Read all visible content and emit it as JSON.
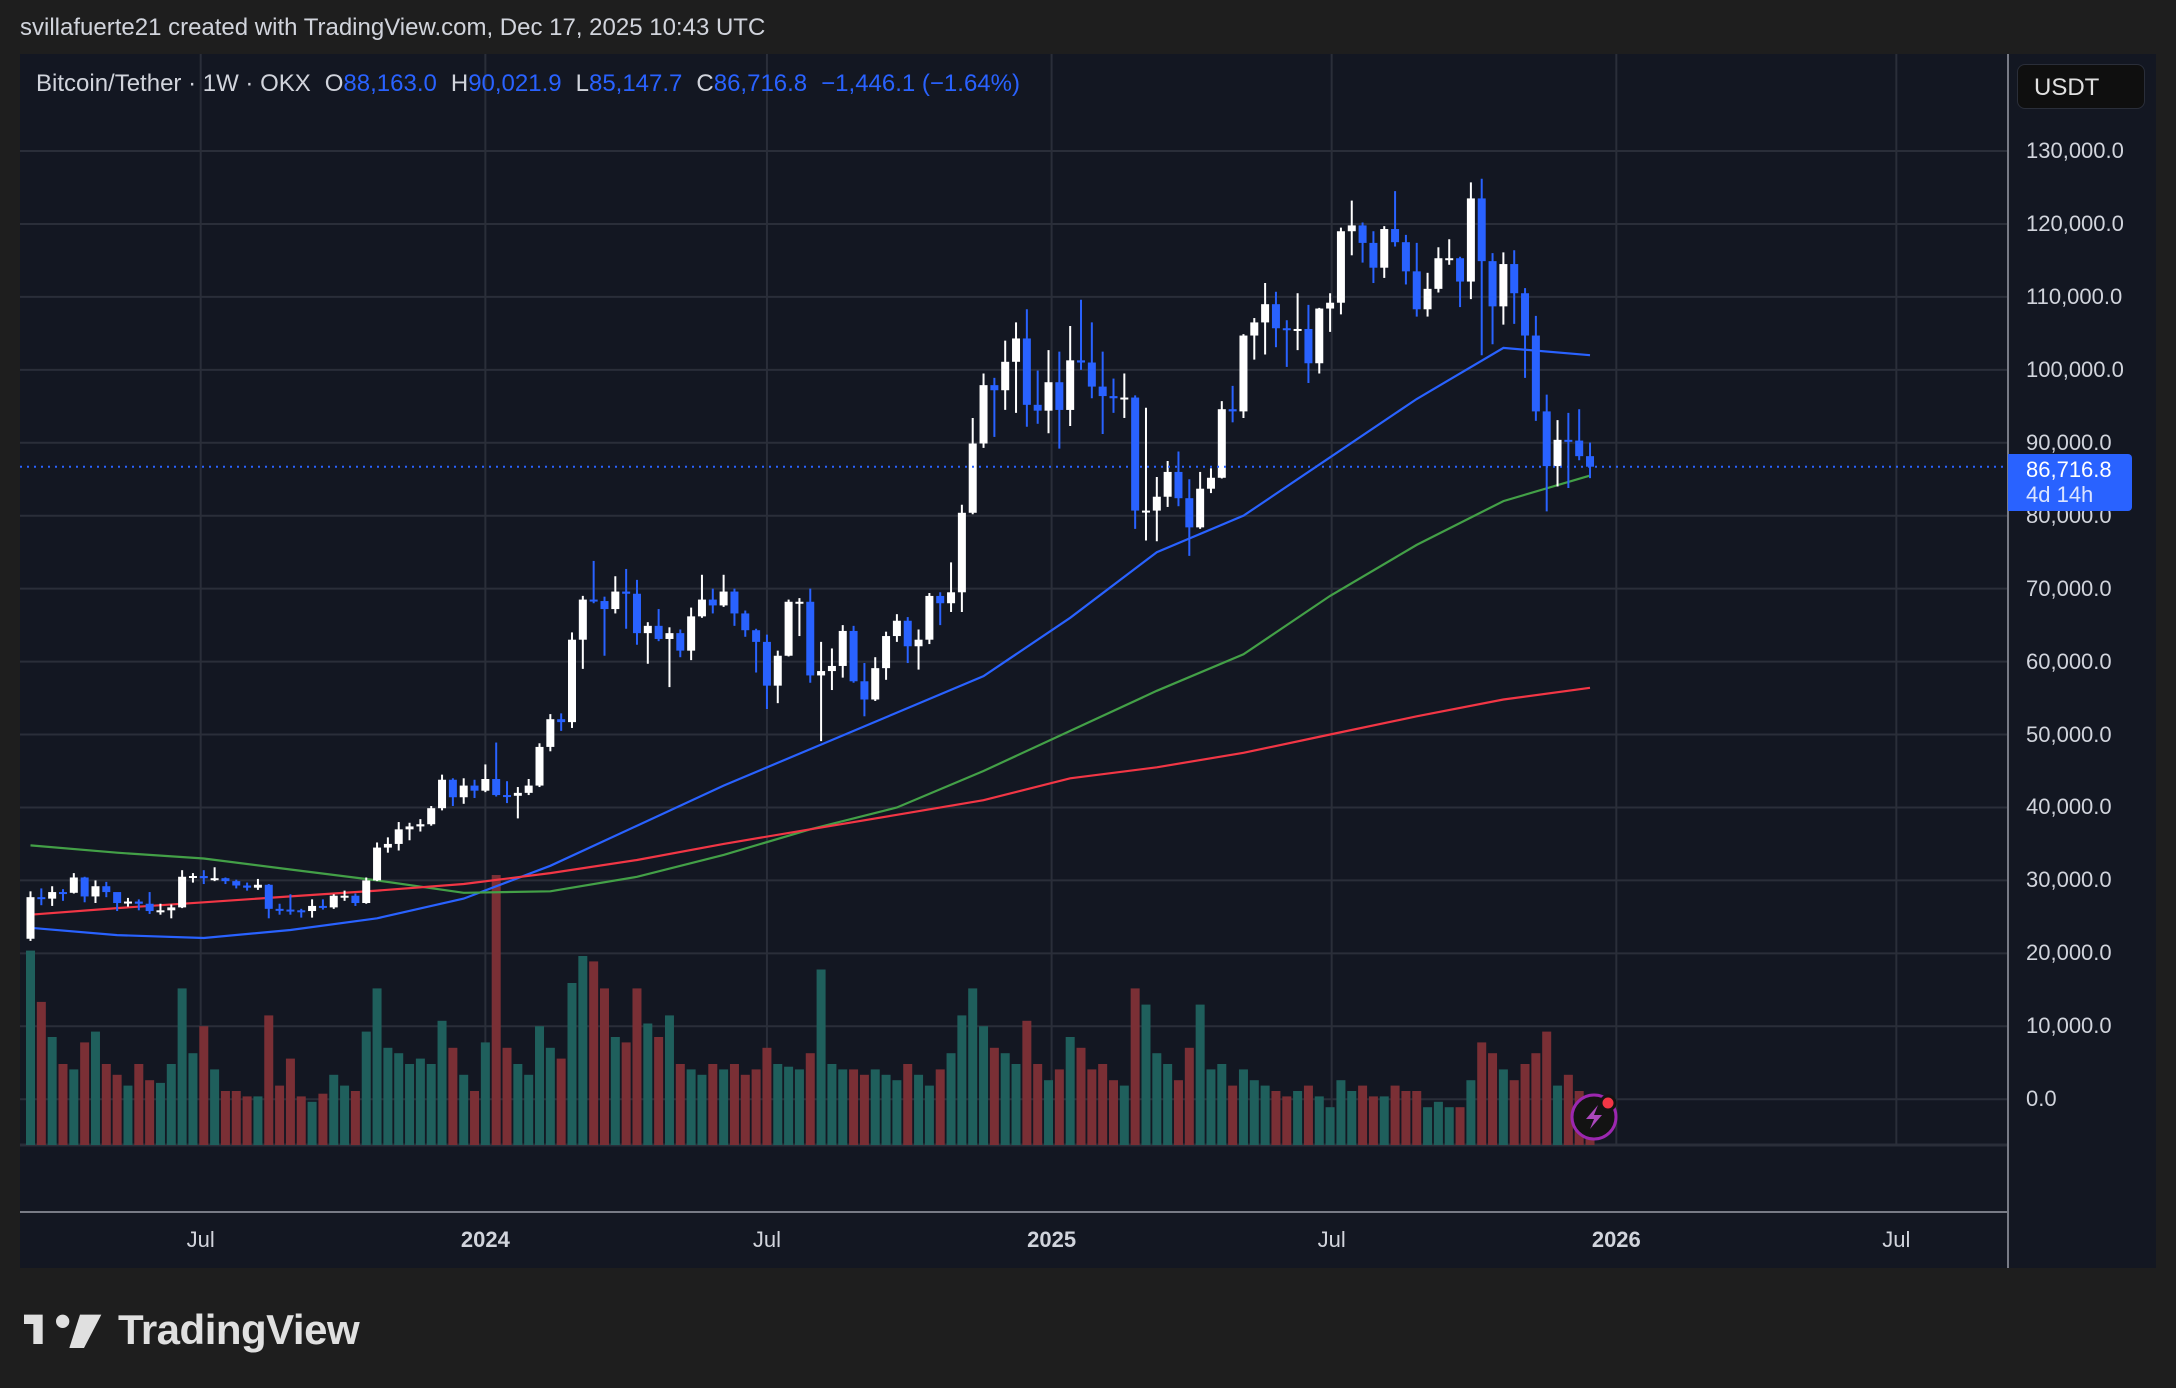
{
  "credit": "svillafuerte21 created with TradingView.com, Dec 17, 2025 10:43 UTC",
  "legend": {
    "symbol": "Bitcoin/Tether · 1W · OKX",
    "o_label": "O",
    "o": "88,163.0",
    "h_label": "H",
    "h": "90,021.9",
    "l_label": "L",
    "l": "85,147.7",
    "c_label": "C",
    "c": "86,716.8",
    "change": "−1,446.1 (−1.64%)"
  },
  "currency_button": "USDT",
  "price_tag": {
    "price": "86,716.8",
    "countdown": "4d 14h"
  },
  "logo_text": "TradingView",
  "colors": {
    "up": "#ffffff",
    "down": "#2962ff",
    "vol_up": "#1f5f5c",
    "vol_down": "#7a2f35",
    "ma_blue": "#2962ff",
    "ma_green": "#43a047",
    "ma_red": "#f23645",
    "grid": "#2a2e39",
    "accent": "#2962ff"
  },
  "icons": {
    "alert": "lightning-bolt-icon"
  },
  "chart_data": {
    "type": "candlestick",
    "interval": "1W",
    "first_week": "2023-03-13",
    "ylim": [
      0,
      130000
    ],
    "yticks": [
      "130,000.0",
      "120,000.0",
      "110,000.0",
      "100,000.0",
      "90,000.0",
      "80,000.0",
      "70,000.0",
      "60,000.0",
      "50,000.0",
      "40,000.0",
      "30,000.0",
      "20,000.0",
      "10,000.0",
      "0.0"
    ],
    "ytick_values": [
      130000,
      120000,
      110000,
      100000,
      90000,
      80000,
      70000,
      60000,
      50000,
      40000,
      30000,
      20000,
      10000,
      0
    ],
    "xticks": [
      {
        "label": "Jul",
        "date": "2023-07-01",
        "bold": false
      },
      {
        "label": "2024",
        "date": "2024-01-01",
        "bold": true
      },
      {
        "label": "Jul",
        "date": "2024-07-01",
        "bold": false
      },
      {
        "label": "2025",
        "date": "2025-01-01",
        "bold": true
      },
      {
        "label": "Jul",
        "date": "2025-07-01",
        "bold": false
      },
      {
        "label": "2026",
        "date": "2026-01-01",
        "bold": true
      },
      {
        "label": "Jul",
        "date": "2026-07-01",
        "bold": false
      }
    ],
    "grid": true,
    "last_price": 86716.8,
    "open": [
      22000,
      27700,
      27500,
      28400,
      28300,
      30400,
      27800,
      29200,
      28400,
      26900,
      27100,
      26800,
      25800,
      25900,
      26300,
      30500,
      30600,
      30300,
      30300,
      29900,
      29300,
      29000,
      29400,
      26100,
      26000,
      25900,
      25800,
      26500,
      26300,
      27900,
      27900,
      26900,
      30000,
      34500,
      35000,
      37000,
      37400,
      37700,
      39900,
      43800,
      41400,
      43000,
      42300,
      43900,
      41700,
      41600,
      42000,
      43000,
      48300,
      52100,
      51700,
      63000,
      68500,
      68300,
      67200,
      69600,
      69300,
      63900,
      64900,
      63100,
      63900,
      61500,
      66200,
      68500,
      67700,
      69600,
      66600,
      64300,
      62700,
      56700,
      60800,
      68200,
      68200,
      58100,
      58700,
      59400,
      64200,
      57300,
      54800,
      59100,
      63500,
      65600,
      62100,
      63000,
      69000,
      68000,
      69500,
      80400,
      89900,
      97900,
      97200,
      101100,
      104300,
      95200,
      94400,
      98300,
      94500,
      101300,
      101000,
      97700,
      96400,
      96100,
      96200,
      80700,
      80700,
      82600,
      86000,
      82400,
      78400,
      83700,
      85200,
      94600,
      94300,
      104700,
      106500,
      109000,
      105700,
      105600,
      105600,
      100900,
      108400,
      109200,
      119000,
      119800,
      117400,
      114000,
      119300,
      117500,
      113500,
      108300,
      111100,
      115300,
      115300,
      112100,
      123500,
      114900,
      108700,
      114500,
      110500,
      104700,
      94300,
      86800,
      90400,
      90300,
      88163
    ],
    "high": [
      28500,
      28900,
      29200,
      28800,
      31000,
      30500,
      30000,
      29800,
      28300,
      27600,
      27400,
      28400,
      26800,
      26700,
      31400,
      31000,
      31400,
      31800,
      30400,
      30100,
      29700,
      30200,
      29500,
      26800,
      28100,
      26100,
      27400,
      27400,
      28100,
      28600,
      28200,
      30400,
      35200,
      35900,
      38000,
      37900,
      38400,
      40200,
      44500,
      44000,
      44000,
      43800,
      45900,
      48900,
      43600,
      42800,
      43900,
      48800,
      52800,
      52900,
      64000,
      69000,
      73800,
      68900,
      71700,
      72700,
      71200,
      65400,
      67200,
      64700,
      64400,
      67400,
      71900,
      70000,
      71900,
      70000,
      67000,
      64500,
      63700,
      61500,
      68500,
      68700,
      70000,
      62700,
      61800,
      65000,
      64900,
      59800,
      60600,
      64100,
      66500,
      66100,
      64400,
      69400,
      69500,
      73600,
      81500,
      93400,
      99500,
      98900,
      104000,
      106500,
      108300,
      99900,
      102700,
      102500,
      106000,
      109600,
      106500,
      102500,
      98800,
      99500,
      96500,
      94800,
      85300,
      87500,
      88800,
      85000,
      86000,
      86500,
      95700,
      97800,
      104900,
      107100,
      111900,
      110700,
      106800,
      110500,
      108900,
      108500,
      110500,
      119500,
      123200,
      120200,
      119000,
      119700,
      124500,
      118500,
      117400,
      113300,
      116800,
      117900,
      115500,
      125700,
      126200,
      116000,
      116100,
      116400,
      111200,
      107400,
      96600,
      93100,
      94100,
      94600,
      90022
    ],
    "low": [
      21700,
      26600,
      26500,
      27200,
      28200,
      27000,
      26900,
      27700,
      25800,
      26400,
      25900,
      25400,
      25300,
      24800,
      26200,
      29700,
      29500,
      29900,
      29500,
      28900,
      28600,
      28700,
      24800,
      25300,
      25300,
      24900,
      24900,
      26000,
      26100,
      27200,
      26500,
      26800,
      29900,
      33800,
      34100,
      35500,
      36700,
      37500,
      39600,
      40200,
      40500,
      41300,
      42100,
      41500,
      40600,
      38500,
      41700,
      42800,
      47700,
      50500,
      50900,
      59000,
      68000,
      60800,
      66600,
      64500,
      62300,
      59700,
      62800,
      56500,
      60600,
      60200,
      66000,
      66600,
      67500,
      64900,
      63400,
      58500,
      53500,
      54300,
      60700,
      63500,
      57100,
      49100,
      56100,
      57800,
      57100,
      52500,
      54600,
      57500,
      62700,
      59800,
      58900,
      62400,
      65000,
      66800,
      66800,
      80200,
      89300,
      90800,
      94500,
      94100,
      92200,
      92600,
      91300,
      89200,
      92300,
      100000,
      96100,
      91200,
      94100,
      93400,
      78200,
      76600,
      76500,
      81200,
      81300,
      74500,
      78200,
      83100,
      85100,
      92800,
      93400,
      101400,
      102100,
      103100,
      100400,
      102700,
      98200,
      99500,
      105200,
      107600,
      115700,
      114700,
      111900,
      112600,
      116900,
      111700,
      107300,
      107300,
      110600,
      114400,
      108600,
      109700,
      102000,
      103500,
      106200,
      106300,
      98900,
      93000,
      80600,
      84000,
      83800,
      87600,
      85148
    ],
    "close": [
      27700,
      27500,
      28400,
      28300,
      30400,
      27800,
      29200,
      28400,
      26900,
      27100,
      26800,
      25800,
      25900,
      26300,
      30500,
      30600,
      30300,
      30300,
      29900,
      29300,
      29000,
      29400,
      26100,
      26000,
      25900,
      25800,
      26500,
      26300,
      27900,
      27900,
      26900,
      30000,
      34500,
      35000,
      37000,
      37400,
      37700,
      39900,
      43800,
      41400,
      43000,
      42300,
      43900,
      41700,
      41600,
      42000,
      43000,
      48300,
      52100,
      51700,
      63000,
      68500,
      68300,
      67200,
      69600,
      69300,
      63900,
      64900,
      63100,
      63900,
      61500,
      66200,
      68500,
      67700,
      69600,
      66600,
      64300,
      62700,
      56700,
      60800,
      68200,
      68200,
      58100,
      58700,
      59400,
      64200,
      57300,
      54800,
      59100,
      63500,
      65600,
      62100,
      63000,
      69000,
      68000,
      69500,
      80400,
      89900,
      97900,
      97200,
      101100,
      104300,
      95200,
      94400,
      98300,
      94500,
      101300,
      101000,
      97700,
      96400,
      96100,
      96200,
      80700,
      80700,
      82600,
      86000,
      82400,
      78400,
      83700,
      85200,
      94600,
      94300,
      104700,
      106500,
      109000,
      105700,
      105600,
      105600,
      100900,
      108400,
      109200,
      119000,
      119800,
      117400,
      114000,
      119300,
      117500,
      113500,
      108300,
      111100,
      115300,
      115300,
      112100,
      123500,
      114900,
      108700,
      114500,
      110500,
      104700,
      94300,
      86800,
      90400,
      90300,
      88163,
      86716.8
    ],
    "volume_relative": [
      72,
      53,
      40,
      30,
      28,
      38,
      42,
      30,
      26,
      22,
      30,
      24,
      23,
      30,
      58,
      34,
      44,
      28,
      20,
      20,
      18,
      18,
      48,
      22,
      32,
      18,
      16,
      19,
      26,
      22,
      20,
      42,
      58,
      36,
      34,
      30,
      32,
      30,
      46,
      36,
      26,
      20,
      38,
      100,
      36,
      30,
      26,
      44,
      36,
      32,
      60,
      70,
      68,
      58,
      40,
      38,
      58,
      45,
      40,
      48,
      30,
      28,
      26,
      30,
      28,
      30,
      26,
      28,
      36,
      30,
      29,
      28,
      34,
      65,
      30,
      28,
      28,
      26,
      28,
      26,
      24,
      30,
      26,
      22,
      28,
      34,
      48,
      58,
      44,
      36,
      34,
      30,
      46,
      30,
      24,
      28,
      40,
      36,
      28,
      30,
      24,
      22,
      58,
      52,
      34,
      30,
      24,
      36,
      52,
      28,
      30,
      22,
      28,
      24,
      22,
      20,
      18,
      20,
      22,
      18,
      14,
      24,
      20,
      22,
      18,
      18,
      22,
      20,
      20,
      14,
      16,
      14,
      14,
      24,
      38,
      34,
      28,
      24,
      30,
      34,
      42,
      22,
      26,
      20,
      8
    ],
    "moving_averages": [
      {
        "color": "#2962ff",
        "sample_every_weeks": 8,
        "values": [
          23500,
          22500,
          22100,
          23200,
          24800,
          27500,
          32000,
          37500,
          43000,
          48000,
          53000,
          58000,
          66000,
          75000,
          80000,
          88000,
          96000,
          103000,
          102000
        ]
      },
      {
        "color": "#43a047",
        "sample_every_weeks": 8,
        "values": [
          34800,
          33800,
          33000,
          31500,
          30000,
          28300,
          28500,
          30500,
          33500,
          37000,
          40000,
          45000,
          50500,
          56000,
          61000,
          69000,
          76000,
          82000,
          85500
        ]
      },
      {
        "color": "#f23645",
        "sample_every_weeks": 8,
        "values": [
          25300,
          26200,
          27000,
          27800,
          28600,
          29500,
          31000,
          32800,
          35000,
          37000,
          39000,
          41000,
          44000,
          45500,
          47500,
          50000,
          52500,
          54800,
          56400
        ]
      }
    ]
  }
}
